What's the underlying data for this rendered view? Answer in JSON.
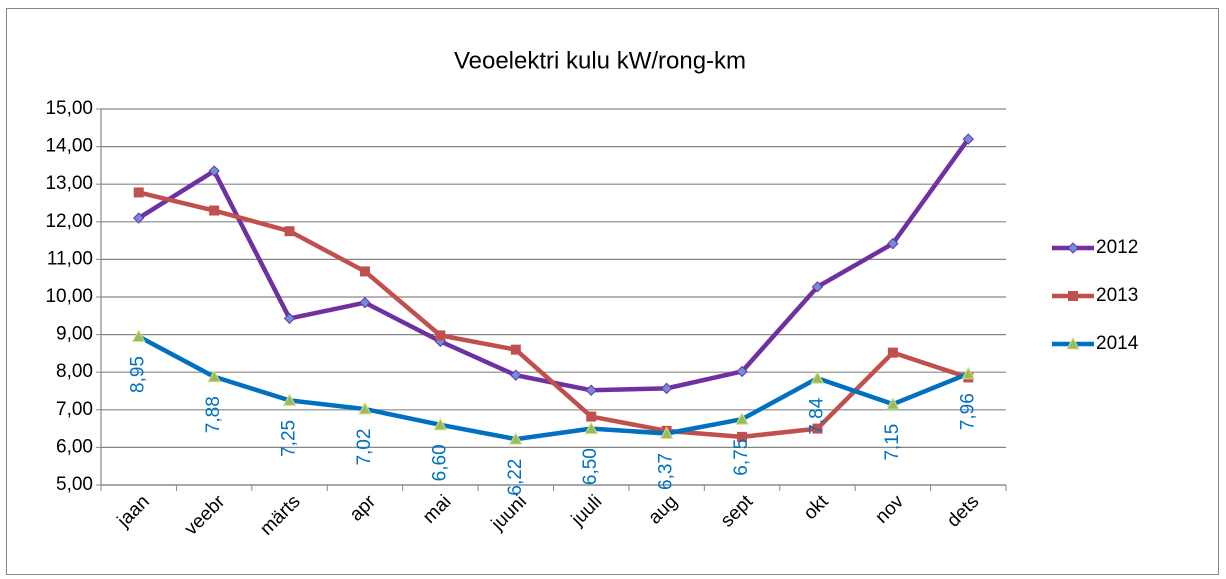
{
  "chart_data": {
    "type": "line",
    "title": "Veoelektri kulu kW/rong-km",
    "categories": [
      "jaan",
      "veebr",
      "märts",
      "apr",
      "mai",
      "juuni",
      "juuli",
      "aug",
      "sept",
      "okt",
      "nov",
      "dets"
    ],
    "series": [
      {
        "name": "2012",
        "color": "#7030a0",
        "marker": "diamond",
        "values": [
          12.1,
          13.35,
          9.43,
          9.85,
          8.82,
          7.92,
          7.52,
          7.57,
          8.02,
          10.27,
          11.42,
          14.2
        ]
      },
      {
        "name": "2013",
        "color": "#c0504d",
        "marker": "square",
        "values": [
          12.78,
          12.3,
          11.75,
          10.68,
          8.98,
          8.6,
          6.82,
          6.44,
          6.28,
          6.5,
          8.52,
          7.86
        ]
      },
      {
        "name": "2014",
        "color": "#0070c0",
        "marker": "triangle",
        "values": [
          8.95,
          7.88,
          7.25,
          7.02,
          6.6,
          6.22,
          6.5,
          6.37,
          6.75,
          7.84,
          7.15,
          7.96
        ],
        "value_labels": [
          "8,95",
          "7,88",
          "7,25",
          "7,02",
          "6,60",
          "6,22",
          "6,50",
          "6,37",
          "6,75",
          "7,84",
          "7,15",
          "7,96"
        ]
      }
    ],
    "ylim": [
      5,
      15
    ],
    "yticks": [
      {
        "value": 5,
        "label": "5,00"
      },
      {
        "value": 6,
        "label": "6,00"
      },
      {
        "value": 7,
        "label": "7,00"
      },
      {
        "value": 8,
        "label": "8,00"
      },
      {
        "value": 9,
        "label": "9,00"
      },
      {
        "value": 10,
        "label": "10,00"
      },
      {
        "value": 11,
        "label": "11,00"
      },
      {
        "value": 12,
        "label": "12,00"
      },
      {
        "value": 13,
        "label": "13,00"
      },
      {
        "value": 14,
        "label": "14,00"
      },
      {
        "value": 15,
        "label": "15,00"
      }
    ],
    "grid": true,
    "legend": "right"
  }
}
